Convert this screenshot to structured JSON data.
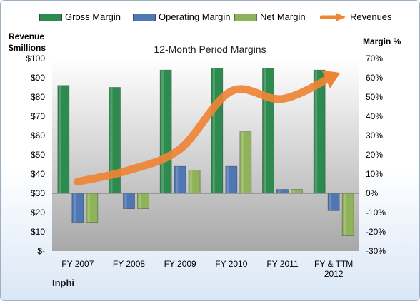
{
  "legend": {
    "gross": "Gross Margin",
    "operating": "Operating Margin",
    "net": "Net Margin",
    "revenues": "Revenues"
  },
  "axes": {
    "left_title_line1": "Revenue",
    "left_title_line2": "$millions",
    "right_title": "Margin %"
  },
  "chart_title": "12-Month Period Margins",
  "corner_label": "Inphi",
  "colors": {
    "gross": "#2e8b4f",
    "operating": "#4f77b3",
    "net": "#8fb35a",
    "revenues": "#ee8434",
    "plot_top": "#ffffff",
    "plot_bottom": "#a8a8a8"
  },
  "chart_data": {
    "type": "bar",
    "title": "12-Month Period Margins",
    "categories": [
      [
        "FY 2007"
      ],
      [
        "FY 2008"
      ],
      [
        "FY 2009"
      ],
      [
        "FY 2010"
      ],
      [
        "FY 2011"
      ],
      [
        "FY & TTM",
        "2012"
      ]
    ],
    "left_axis": {
      "label": "Revenue $millions",
      "ylim": [
        0,
        100
      ],
      "ticks": [
        0,
        10,
        20,
        30,
        40,
        50,
        60,
        70,
        80,
        90,
        100
      ],
      "tick_labels": [
        "$-",
        "$10",
        "$20",
        "$30",
        "$40",
        "$50",
        "$60",
        "$70",
        "$80",
        "$90",
        "$100"
      ]
    },
    "right_axis": {
      "label": "Margin %",
      "ylim": [
        -30,
        70
      ],
      "ticks": [
        -30,
        -20,
        -10,
        0,
        10,
        20,
        30,
        40,
        50,
        60,
        70
      ],
      "tick_labels": [
        "-30%",
        "-20%",
        "-10%",
        "0%",
        "10%",
        "20%",
        "30%",
        "40%",
        "50%",
        "60%",
        "70%"
      ]
    },
    "series": [
      {
        "name": "Gross Margin",
        "axis": "right",
        "kind": "bar",
        "values": [
          56,
          55,
          64,
          65,
          65,
          64
        ]
      },
      {
        "name": "Operating Margin",
        "axis": "right",
        "kind": "bar",
        "values": [
          -15,
          -8,
          14,
          14,
          2,
          -9
        ]
      },
      {
        "name": "Net Margin",
        "axis": "right",
        "kind": "bar",
        "values": [
          -15,
          -8,
          12,
          32,
          2,
          -22
        ]
      },
      {
        "name": "Revenues",
        "axis": "left",
        "kind": "line",
        "values": [
          36,
          42,
          53,
          83,
          79,
          91
        ]
      }
    ],
    "grid": false,
    "legend_position": "top"
  }
}
